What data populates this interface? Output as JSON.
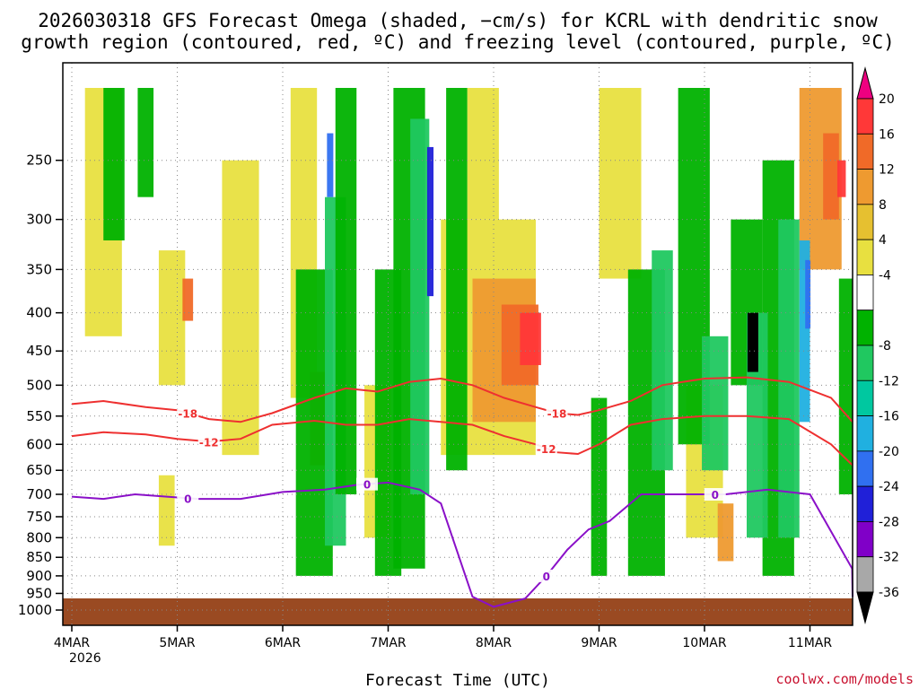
{
  "chart_data": {
    "type": "heatmap",
    "title_line1": "2026030318 GFS Forecast Omega (shaded, −cm/s) for KCRL with dendritic snow",
    "title_line2": "growth region (contoured, red, ºC) and freezing level (contoured, purple, ºC)",
    "xlabel": "Forecast Time (UTC)",
    "credit": "coolwx.com/models",
    "year_label": "2026",
    "x_ticks": [
      "4MAR",
      "5MAR",
      "6MAR",
      "7MAR",
      "8MAR",
      "9MAR",
      "10MAR",
      "11MAR"
    ],
    "y_ticks": [
      250,
      300,
      350,
      400,
      450,
      500,
      550,
      600,
      650,
      700,
      750,
      800,
      850,
      900,
      950,
      1000
    ],
    "ylim": [
      1000,
      200
    ],
    "colorbar_levels": [
      20,
      16,
      12,
      8,
      4,
      -4,
      -8,
      -12,
      -16,
      -20,
      -24,
      -28,
      -32,
      -36
    ],
    "colorbar_colors": [
      "#ee0080",
      "#ff3838",
      "#f06a28",
      "#ee9a30",
      "#e6c030",
      "#e8e040",
      "#ffffff",
      "#00b200",
      "#20c860",
      "#00c8a0",
      "#20b0e0",
      "#3070f0",
      "#2020d8",
      "#8000c8",
      "#a8a8a8",
      "#000000"
    ],
    "contour_labels": {
      "dendritic_upper": "-18",
      "dendritic_lower": "-12",
      "freezing": "0"
    },
    "series": [
      {
        "name": "-18 ºC isotherm (dendritic top)",
        "color": "#ee3030",
        "x": [
          0,
          0.3,
          0.7,
          1.0,
          1.3,
          1.6,
          1.9,
          2.3,
          2.6,
          2.9,
          3.2,
          3.5,
          3.8,
          4.1,
          4.4,
          4.6,
          4.8,
          5.0,
          5.3,
          5.6,
          6.0,
          6.4,
          6.8,
          7.2,
          7.5
        ],
        "y": [
          530,
          525,
          535,
          540,
          555,
          560,
          545,
          520,
          505,
          510,
          495,
          490,
          500,
          520,
          535,
          545,
          548,
          540,
          525,
          500,
          490,
          488,
          495,
          520,
          560
        ]
      },
      {
        "name": "-12 ºC isotherm (dendritic bottom)",
        "color": "#ee3030",
        "x": [
          0,
          0.3,
          0.7,
          1.0,
          1.3,
          1.6,
          1.9,
          2.3,
          2.6,
          2.9,
          3.2,
          3.5,
          3.8,
          4.1,
          4.4,
          4.6,
          4.8,
          5.0,
          5.3,
          5.6,
          6.0,
          6.4,
          6.8,
          7.2,
          7.5
        ],
        "y": [
          585,
          578,
          582,
          590,
          595,
          590,
          565,
          558,
          565,
          565,
          555,
          560,
          565,
          585,
          600,
          615,
          618,
          600,
          565,
          555,
          550,
          550,
          555,
          600,
          640
        ]
      },
      {
        "name": "0 ºC isotherm (freezing level)",
        "color": "#8a10c8",
        "x": [
          0,
          0.3,
          0.6,
          0.9,
          1.2,
          1.6,
          2.0,
          2.4,
          2.7,
          3.0,
          3.3,
          3.5,
          3.8,
          4.0,
          4.3,
          4.5,
          4.7,
          4.9,
          5.1,
          5.4,
          5.8,
          6.2,
          6.6,
          7.0,
          7.4,
          7.6
        ],
        "y": [
          705,
          710,
          700,
          705,
          710,
          710,
          695,
          690,
          680,
          675,
          690,
          720,
          960,
          990,
          965,
          900,
          830,
          780,
          760,
          700,
          700,
          700,
          690,
          700,
          880,
          960
        ]
      }
    ]
  }
}
